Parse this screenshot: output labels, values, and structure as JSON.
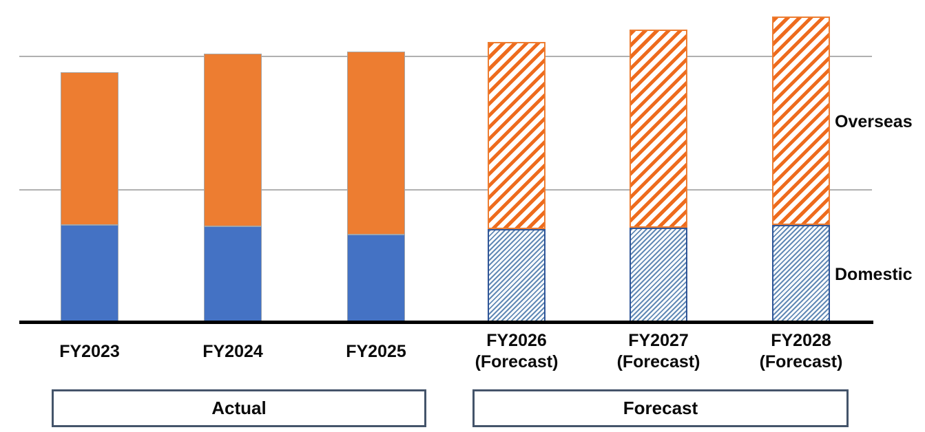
{
  "chart_data": {
    "type": "bar",
    "stacked": true,
    "title": "",
    "categories": [
      {
        "label": "FY2023",
        "sublabel": "",
        "forecast": false
      },
      {
        "label": "FY2024",
        "sublabel": "",
        "forecast": false
      },
      {
        "label": "FY2025",
        "sublabel": "",
        "forecast": false
      },
      {
        "label": "FY2026",
        "sublabel": "(Forecast)",
        "forecast": true
      },
      {
        "label": "FY2027",
        "sublabel": "(Forecast)",
        "forecast": true
      },
      {
        "label": "FY2028",
        "sublabel": "(Forecast)",
        "forecast": true
      }
    ],
    "series": [
      {
        "name": "Domestic",
        "values": [
          0.73,
          0.72,
          0.66,
          0.7,
          0.71,
          0.73
        ],
        "color": "#4472C4",
        "forecast_fill": "fine-diagonal-hatch"
      },
      {
        "name": "Overseas",
        "values": [
          1.15,
          1.3,
          1.38,
          1.41,
          1.49,
          1.57
        ],
        "color": "#ED7D31",
        "forecast_fill": "wide-diagonal-hatch"
      }
    ],
    "value_axis": {
      "tick_labels_visible": false,
      "gridline_values": [
        1,
        2
      ],
      "ylim": [
        0,
        2.42
      ]
    },
    "legend": {
      "position": "right-of-last-bar",
      "entries": [
        "Overseas",
        "Domestic"
      ]
    },
    "group_boxes": [
      {
        "label": "Actual",
        "covers": [
          "FY2023",
          "FY2024",
          "FY2025"
        ]
      },
      {
        "label": "Forecast",
        "covers": [
          "FY2026",
          "FY2027",
          "FY2028"
        ]
      }
    ]
  },
  "colors": {
    "domestic_solid": "#4472C4",
    "overseas_solid": "#ED7D31",
    "forecast_domestic_hatch": "#6189B5",
    "forecast_overseas_hatch": "#EE6B1D",
    "forecast_domestic_border": "#2F5597",
    "gridline": "#B0B0B0",
    "axis": "#000000",
    "group_box_border": "#44546A"
  }
}
